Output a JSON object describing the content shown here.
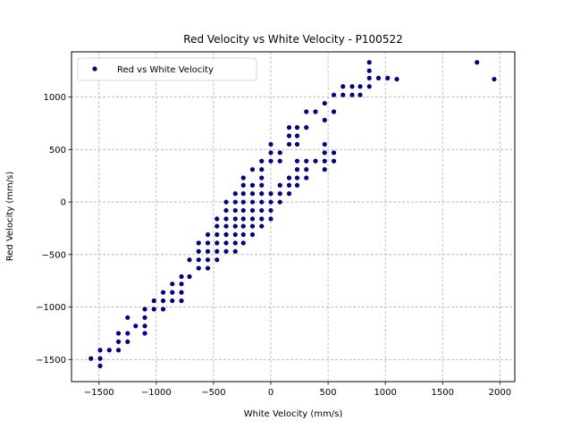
{
  "chart_data": {
    "type": "scatter",
    "title": "Red Velocity vs White Velocity - P100522",
    "xlabel": "White Velocity (mm/s)",
    "ylabel": "Red Velocity (mm/s)",
    "xlim": [
      -1740,
      2130
    ],
    "ylim": [
      -1710,
      1430
    ],
    "xticks": [
      -1500,
      -1000,
      -500,
      0,
      500,
      1000,
      1500,
      2000
    ],
    "yticks": [
      -1500,
      -1000,
      -500,
      0,
      500,
      1000
    ],
    "xtick_labels": [
      "−1500",
      "−1000",
      "−500",
      "0",
      "500",
      "1000",
      "1500",
      "2000"
    ],
    "ytick_labels": [
      "−1500",
      "−1000",
      "−500",
      "0",
      "500",
      "1000"
    ],
    "grid": true,
    "legend_position": "top-left",
    "marker_color": "#000080",
    "series": [
      {
        "name": "Red vs White Velocity",
        "points": [
          [
            -1570,
            -1490
          ],
          [
            -1490,
            -1560
          ],
          [
            -1490,
            -1490
          ],
          [
            -1490,
            -1410
          ],
          [
            -1410,
            -1410
          ],
          [
            -1330,
            -1410
          ],
          [
            -1330,
            -1330
          ],
          [
            -1330,
            -1250
          ],
          [
            -1250,
            -1330
          ],
          [
            -1250,
            -1250
          ],
          [
            -1250,
            -1100
          ],
          [
            -1180,
            -1180
          ],
          [
            -1100,
            -1250
          ],
          [
            -1100,
            -1180
          ],
          [
            -1100,
            -1100
          ],
          [
            -1100,
            -1020
          ],
          [
            -1020,
            -1020
          ],
          [
            -1020,
            -940
          ],
          [
            -940,
            -1020
          ],
          [
            -940,
            -940
          ],
          [
            -940,
            -860
          ],
          [
            -860,
            -940
          ],
          [
            -860,
            -860
          ],
          [
            -860,
            -780
          ],
          [
            -780,
            -940
          ],
          [
            -780,
            -860
          ],
          [
            -780,
            -780
          ],
          [
            -780,
            -710
          ],
          [
            -710,
            -710
          ],
          [
            -710,
            -550
          ],
          [
            -630,
            -630
          ],
          [
            -630,
            -550
          ],
          [
            -630,
            -470
          ],
          [
            -630,
            -390
          ],
          [
            -550,
            -630
          ],
          [
            -550,
            -550
          ],
          [
            -550,
            -470
          ],
          [
            -550,
            -390
          ],
          [
            -550,
            -310
          ],
          [
            -470,
            -550
          ],
          [
            -470,
            -470
          ],
          [
            -470,
            -390
          ],
          [
            -470,
            -310
          ],
          [
            -470,
            -230
          ],
          [
            -470,
            -160
          ],
          [
            -390,
            -470
          ],
          [
            -390,
            -390
          ],
          [
            -390,
            -310
          ],
          [
            -390,
            -230
          ],
          [
            -390,
            -160
          ],
          [
            -390,
            -80
          ],
          [
            -390,
            0
          ],
          [
            -310,
            -470
          ],
          [
            -310,
            -390
          ],
          [
            -310,
            -310
          ],
          [
            -310,
            -230
          ],
          [
            -310,
            -160
          ],
          [
            -310,
            -80
          ],
          [
            -310,
            0
          ],
          [
            -310,
            80
          ],
          [
            -240,
            -390
          ],
          [
            -240,
            -310
          ],
          [
            -240,
            -230
          ],
          [
            -240,
            -160
          ],
          [
            -240,
            -80
          ],
          [
            -240,
            0
          ],
          [
            -240,
            80
          ],
          [
            -240,
            160
          ],
          [
            -240,
            230
          ],
          [
            -160,
            -310
          ],
          [
            -160,
            -230
          ],
          [
            -160,
            -160
          ],
          [
            -160,
            -80
          ],
          [
            -160,
            0
          ],
          [
            -160,
            80
          ],
          [
            -160,
            160
          ],
          [
            -160,
            310
          ],
          [
            -80,
            -230
          ],
          [
            -80,
            -160
          ],
          [
            -80,
            -80
          ],
          [
            -80,
            0
          ],
          [
            -80,
            80
          ],
          [
            -80,
            160
          ],
          [
            -80,
            230
          ],
          [
            -80,
            310
          ],
          [
            -80,
            390
          ],
          [
            0,
            -160
          ],
          [
            0,
            -80
          ],
          [
            0,
            0
          ],
          [
            0,
            80
          ],
          [
            0,
            390
          ],
          [
            0,
            470
          ],
          [
            0,
            550
          ],
          [
            80,
            0
          ],
          [
            80,
            80
          ],
          [
            80,
            160
          ],
          [
            80,
            390
          ],
          [
            80,
            470
          ],
          [
            160,
            80
          ],
          [
            160,
            160
          ],
          [
            160,
            230
          ],
          [
            160,
            550
          ],
          [
            160,
            630
          ],
          [
            160,
            710
          ],
          [
            230,
            160
          ],
          [
            230,
            230
          ],
          [
            230,
            310
          ],
          [
            230,
            390
          ],
          [
            230,
            550
          ],
          [
            230,
            630
          ],
          [
            230,
            710
          ],
          [
            310,
            230
          ],
          [
            310,
            310
          ],
          [
            310,
            390
          ],
          [
            310,
            710
          ],
          [
            310,
            860
          ],
          [
            390,
            390
          ],
          [
            390,
            860
          ],
          [
            470,
            310
          ],
          [
            470,
            390
          ],
          [
            470,
            470
          ],
          [
            470,
            550
          ],
          [
            470,
            780
          ],
          [
            470,
            940
          ],
          [
            550,
            390
          ],
          [
            550,
            470
          ],
          [
            550,
            860
          ],
          [
            550,
            1020
          ],
          [
            630,
            1020
          ],
          [
            630,
            1100
          ],
          [
            710,
            1020
          ],
          [
            710,
            1100
          ],
          [
            780,
            1020
          ],
          [
            780,
            1100
          ],
          [
            860,
            1100
          ],
          [
            860,
            1180
          ],
          [
            860,
            1250
          ],
          [
            860,
            1330
          ],
          [
            940,
            1180
          ],
          [
            1020,
            1180
          ],
          [
            1100,
            1170
          ],
          [
            1800,
            1330
          ],
          [
            1950,
            1170
          ]
        ]
      }
    ]
  }
}
